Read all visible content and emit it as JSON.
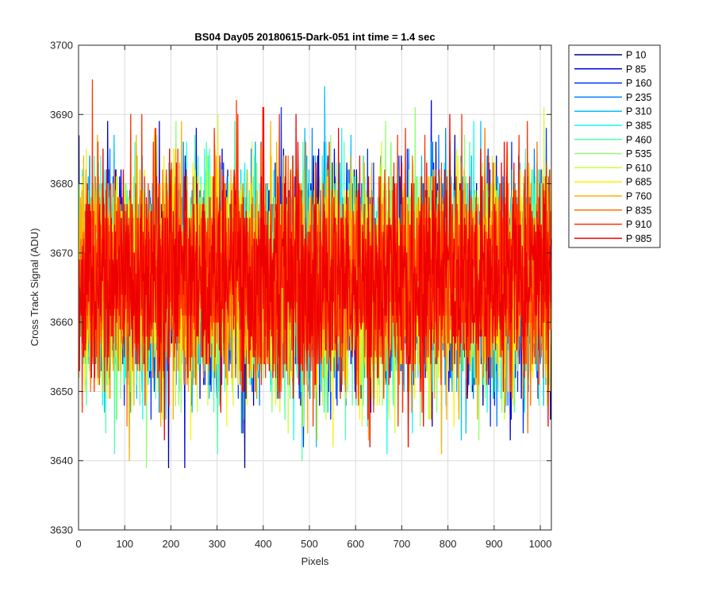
{
  "chart_data": {
    "type": "line",
    "title": "BS04 Day05 20180615-Dark-051 int time = 1.4 sec",
    "xlabel": "Pixels",
    "ylabel": "Cross Track Signal (ADU)",
    "xlim": [
      0,
      1024
    ],
    "ylim": [
      3630,
      3700
    ],
    "xticks": [
      0,
      100,
      200,
      300,
      400,
      500,
      600,
      700,
      800,
      900,
      1000
    ],
    "yticks": [
      3630,
      3640,
      3650,
      3660,
      3670,
      3680,
      3690,
      3700
    ],
    "grid": true,
    "legend_position": "outside-right",
    "x": {
      "start": 1,
      "end": 1024,
      "step": 1
    },
    "noise_model": {
      "mean": 3666.5,
      "std": 7.5
    },
    "series": [
      {
        "name": "P 10",
        "color": "#00008F"
      },
      {
        "name": "P 85",
        "color": "#0000DF"
      },
      {
        "name": "P 160",
        "color": "#0030FF"
      },
      {
        "name": "P 235",
        "color": "#0080FF"
      },
      {
        "name": "P 310",
        "color": "#00BFFF"
      },
      {
        "name": "P 385",
        "color": "#10FFEF"
      },
      {
        "name": "P 460",
        "color": "#50FFAF"
      },
      {
        "name": "P 535",
        "color": "#90FF70"
      },
      {
        "name": "P 610",
        "color": "#CFFF30"
      },
      {
        "name": "P 685",
        "color": "#FFEF00"
      },
      {
        "name": "P 760",
        "color": "#FFAF00"
      },
      {
        "name": "P 835",
        "color": "#FF7000"
      },
      {
        "name": "P 910",
        "color": "#FF3000"
      },
      {
        "name": "P 985",
        "color": "#EF0000"
      }
    ]
  }
}
